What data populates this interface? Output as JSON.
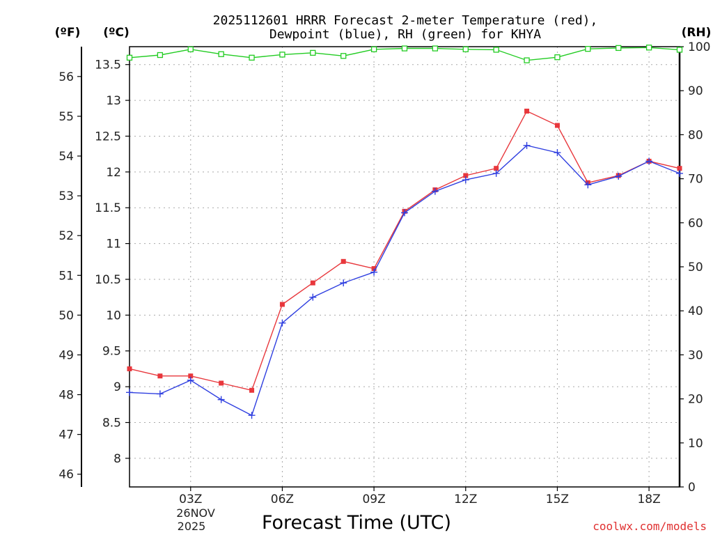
{
  "chart_data": {
    "type": "line",
    "title_lines": [
      "2025112601 HRRR Forecast 2-meter Temperature (red),",
      "Dewpoint (blue), RH (green) for KHYA"
    ],
    "xlabel": "Forecast Time (UTC)",
    "unit_labels": {
      "fahrenheit": "(ºF)",
      "celsius": "(ºC)",
      "rh": "(RH)"
    },
    "x_range": [
      1,
      19
    ],
    "x_ticks": [
      {
        "hour": 3,
        "label": "03Z"
      },
      {
        "hour": 6,
        "label": "06Z"
      },
      {
        "hour": 9,
        "label": "09Z"
      },
      {
        "hour": 12,
        "label": "12Z"
      },
      {
        "hour": 15,
        "label": "15Z"
      },
      {
        "hour": 18,
        "label": "18Z"
      }
    ],
    "date_lines": [
      "26NOV",
      "2025"
    ],
    "celsius_range": [
      7.6,
      13.75
    ],
    "celsius_ticks": [
      "8",
      "8.5",
      "9",
      "9.5",
      "10",
      "10.5",
      "11",
      "11.5",
      "12",
      "12.5",
      "13",
      "13.5"
    ],
    "fahrenheit_ticks": [
      "46",
      "47",
      "48",
      "49",
      "50",
      "51",
      "52",
      "53",
      "54",
      "55",
      "56"
    ],
    "rh_range": [
      0,
      100
    ],
    "rh_ticks": [
      "0",
      "10",
      "20",
      "30",
      "40",
      "50",
      "60",
      "70",
      "80",
      "90",
      "100"
    ],
    "grid": true,
    "series": [
      {
        "name": "Temperature",
        "axis": "celsius",
        "color": "#e8373c",
        "marker": "filled-square",
        "x": [
          1,
          2,
          3,
          4,
          5,
          6,
          7,
          8,
          9,
          10,
          11,
          12,
          13,
          14,
          15,
          16,
          17,
          18,
          19
        ],
        "values": [
          9.25,
          9.15,
          9.15,
          9.05,
          8.95,
          10.15,
          10.45,
          10.75,
          10.65,
          11.45,
          11.75,
          11.95,
          12.05,
          12.85,
          12.65,
          11.85,
          11.95,
          12.15,
          12.05
        ]
      },
      {
        "name": "Dewpoint",
        "axis": "celsius",
        "color": "#2f3fe0",
        "marker": "plus",
        "x": [
          1,
          2,
          3,
          4,
          5,
          6,
          7,
          8,
          9,
          10,
          11,
          12,
          13,
          14,
          15,
          16,
          17,
          18,
          19
        ],
        "values": [
          8.92,
          8.9,
          9.09,
          8.82,
          8.6,
          9.89,
          10.25,
          10.45,
          10.6,
          11.43,
          11.73,
          11.89,
          11.98,
          12.37,
          12.27,
          11.82,
          11.94,
          12.15,
          11.98
        ]
      },
      {
        "name": "RH",
        "axis": "rh",
        "color": "#22cc22",
        "marker": "open-square",
        "x": [
          1,
          2,
          3,
          4,
          5,
          6,
          7,
          8,
          9,
          10,
          11,
          12,
          13,
          14,
          15,
          16,
          17,
          18,
          19
        ],
        "values": [
          97.5,
          98.1,
          99.4,
          98.3,
          97.5,
          98.2,
          98.6,
          97.9,
          99.4,
          99.6,
          99.6,
          99.4,
          99.3,
          96.9,
          97.6,
          99.5,
          99.7,
          99.8,
          99.3
        ]
      }
    ]
  },
  "credit": "coolwx.com/models"
}
